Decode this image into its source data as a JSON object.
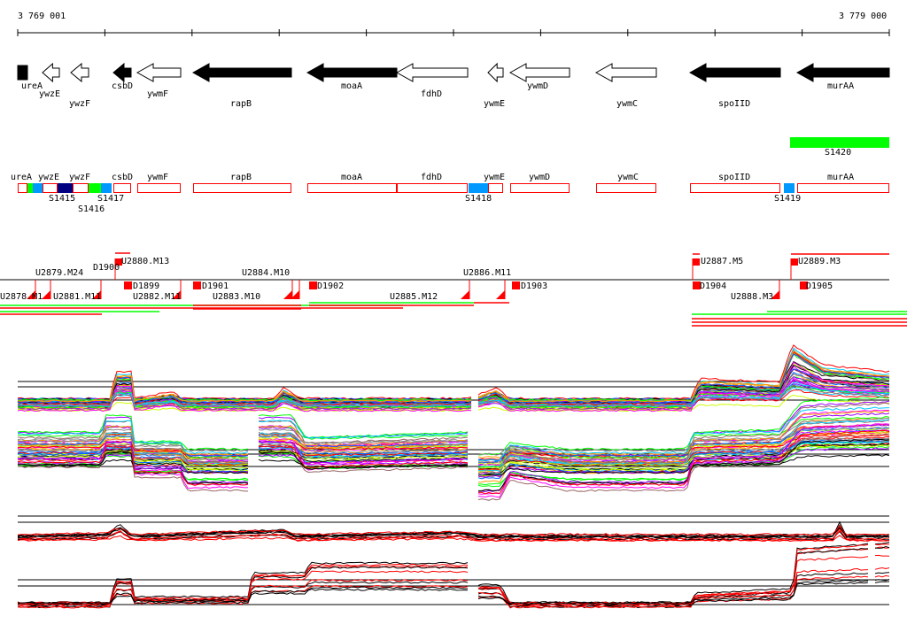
{
  "ruler": {
    "start_label": "3 769 001",
    "end_label": "3 779 000"
  },
  "genes": [
    {
      "name": "ureA",
      "fill": "black",
      "shape": "block"
    },
    {
      "name": "ywzE",
      "fill": "white",
      "shape": "arrow"
    },
    {
      "name": "ywzF",
      "fill": "white",
      "shape": "arrow"
    },
    {
      "name": "csbD",
      "fill": "black",
      "shape": "arrow"
    },
    {
      "name": "ywmF",
      "fill": "white",
      "shape": "arrow"
    },
    {
      "name": "rapB",
      "fill": "black",
      "shape": "arrow"
    },
    {
      "name": "moaA",
      "fill": "black",
      "shape": "arrow"
    },
    {
      "name": "fdhD",
      "fill": "white",
      "shape": "arrow"
    },
    {
      "name": "ywmE",
      "fill": "white",
      "shape": "arrow"
    },
    {
      "name": "ywmD",
      "fill": "white",
      "shape": "arrow"
    },
    {
      "name": "ywmC",
      "fill": "white",
      "shape": "arrow"
    },
    {
      "name": "spoIID",
      "fill": "black",
      "shape": "arrow"
    },
    {
      "name": "murAA",
      "fill": "black",
      "shape": "arrow"
    }
  ],
  "green_feature": {
    "label": "S1420",
    "color": "#00ff00"
  },
  "segment_labels": [
    "S1415",
    "S1416",
    "S1417",
    "S1418",
    "S1419"
  ],
  "colors": {
    "box_outline": "#ff0000",
    "green": "#00ff00",
    "blue": "#0099ff",
    "navy": "#000080",
    "marker": "#ff0000"
  },
  "markers": [
    "U2878.M1",
    "U2879.M24",
    "U2881.M11",
    "U2882.M11",
    "U2880.M13",
    "D1900",
    "D1899",
    "D1901",
    "U2883.M10",
    "U2884.M10",
    "D1902",
    "U2885.M12",
    "U2886.M11",
    "D1903",
    "U2887.M5",
    "D1904",
    "U2888.M3",
    "U2889.M3",
    "D1905"
  ]
}
